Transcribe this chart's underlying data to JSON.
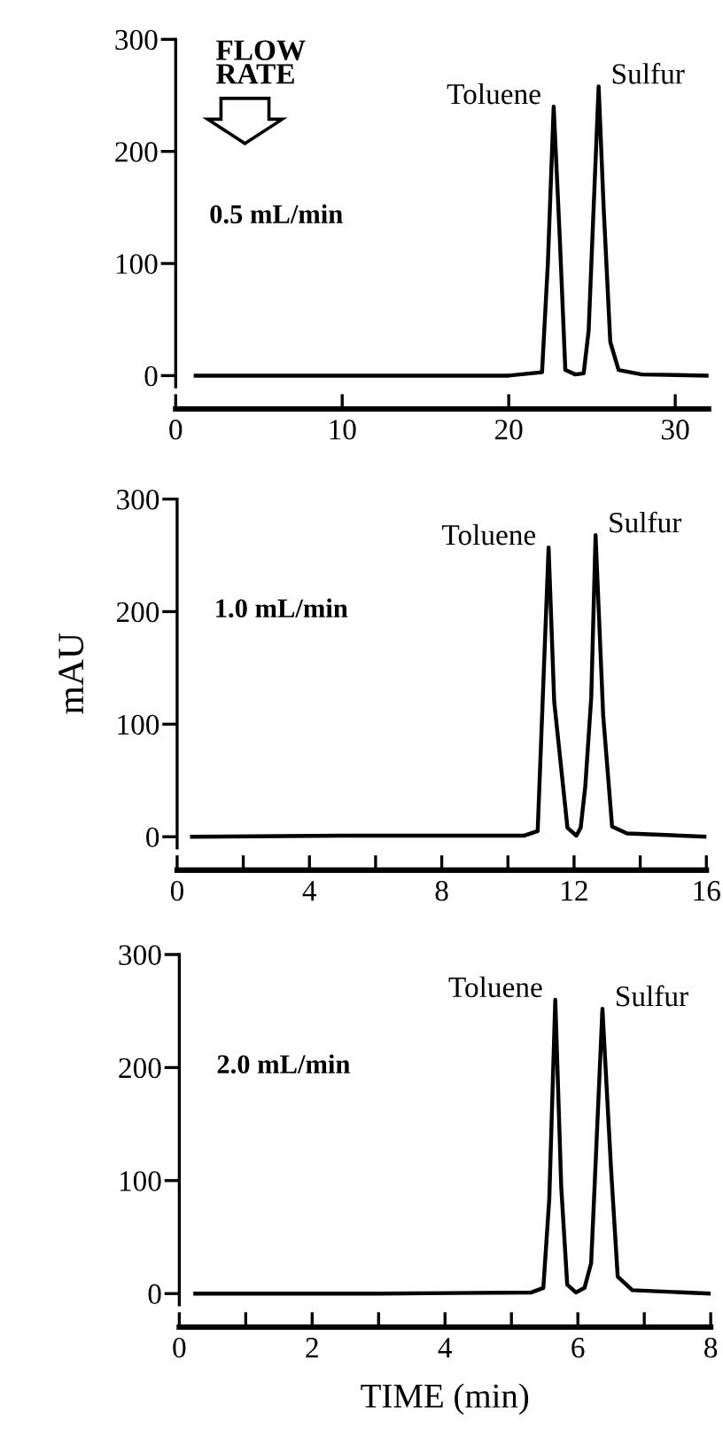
{
  "chart_data": [
    {
      "type": "line",
      "xlim": [
        0,
        32
      ],
      "xticks": [
        0,
        10,
        20,
        30
      ],
      "ylim": [
        -10,
        300
      ],
      "yticks": [
        0,
        100,
        200,
        300
      ],
      "x": [
        1.2,
        10,
        20,
        22.0,
        22.35,
        22.7,
        23.06,
        23.4,
        24.0,
        24.5,
        24.8,
        25.1,
        25.4,
        25.7,
        26.1,
        26.6,
        28,
        31.9
      ],
      "series": [
        {
          "color": "#000000",
          "values": [
            0,
            0,
            0,
            3,
            100,
            240,
            125,
            5,
            1,
            2,
            40,
            150,
            258,
            150,
            30,
            5,
            1,
            0
          ]
        }
      ],
      "annotations": [
        "FLOW\nRATE",
        "0.5 mL/min",
        {
          "text": "Toluene",
          "x": 22.7,
          "y": 240
        },
        {
          "text": "Sulfur",
          "x": 25.4,
          "y": 258
        }
      ]
    },
    {
      "type": "line",
      "xlim": [
        0,
        16
      ],
      "xticks": [
        0,
        {
          "value": 2,
          "label": null
        },
        4,
        {
          "value": 6,
          "label": null
        },
        8,
        {
          "value": 10,
          "label": null
        },
        12,
        {
          "value": 14,
          "label": null
        },
        16
      ],
      "ylim": [
        -10,
        300
      ],
      "yticks": [
        0,
        100,
        200,
        300
      ],
      "ylabel": "mAU",
      "x": [
        0.45,
        5,
        10.5,
        10.9,
        11.05,
        11.23,
        11.4,
        11.8,
        12.07,
        12.2,
        12.34,
        12.52,
        12.65,
        12.88,
        13.15,
        13.6,
        16
      ],
      "series": [
        {
          "color": "#000000",
          "values": [
            0,
            1,
            1,
            5,
            120,
            257,
            120,
            8,
            1,
            8,
            45,
            124,
            268,
            108,
            9,
            3,
            0
          ]
        }
      ],
      "annotations": [
        "1.0 mL/min",
        {
          "text": "Toluene",
          "x": 11.23,
          "y": 257
        },
        {
          "text": "Sulfur",
          "x": 12.65,
          "y": 268
        }
      ]
    },
    {
      "type": "line",
      "xlim": [
        0,
        8
      ],
      "xticks": [
        0,
        {
          "value": 1,
          "label": null
        },
        2,
        {
          "value": 3,
          "label": null
        },
        4,
        {
          "value": 5,
          "label": null
        },
        6,
        {
          "value": 7,
          "label": null
        },
        8
      ],
      "ylim": [
        -10,
        300
      ],
      "yticks": [
        0,
        100,
        200,
        300
      ],
      "xlabel": "TIME (min)",
      "x": [
        0.24,
        3,
        5.3,
        5.48,
        5.57,
        5.66,
        5.75,
        5.84,
        5.97,
        6.1,
        6.2,
        6.24,
        6.37,
        6.5,
        6.6,
        6.82,
        7.97
      ],
      "series": [
        {
          "color": "#000000",
          "values": [
            0,
            0,
            1,
            5,
            84,
            260,
            94,
            8,
            1,
            5,
            27,
            79,
            252,
            110,
            15,
            3,
            0
          ]
        }
      ],
      "annotations": [
        "2.0 mL/min",
        {
          "text": "Toluene",
          "x": 5.66,
          "y": 260
        },
        {
          "text": "Sulfur",
          "x": 6.37,
          "y": 252
        }
      ]
    }
  ]
}
